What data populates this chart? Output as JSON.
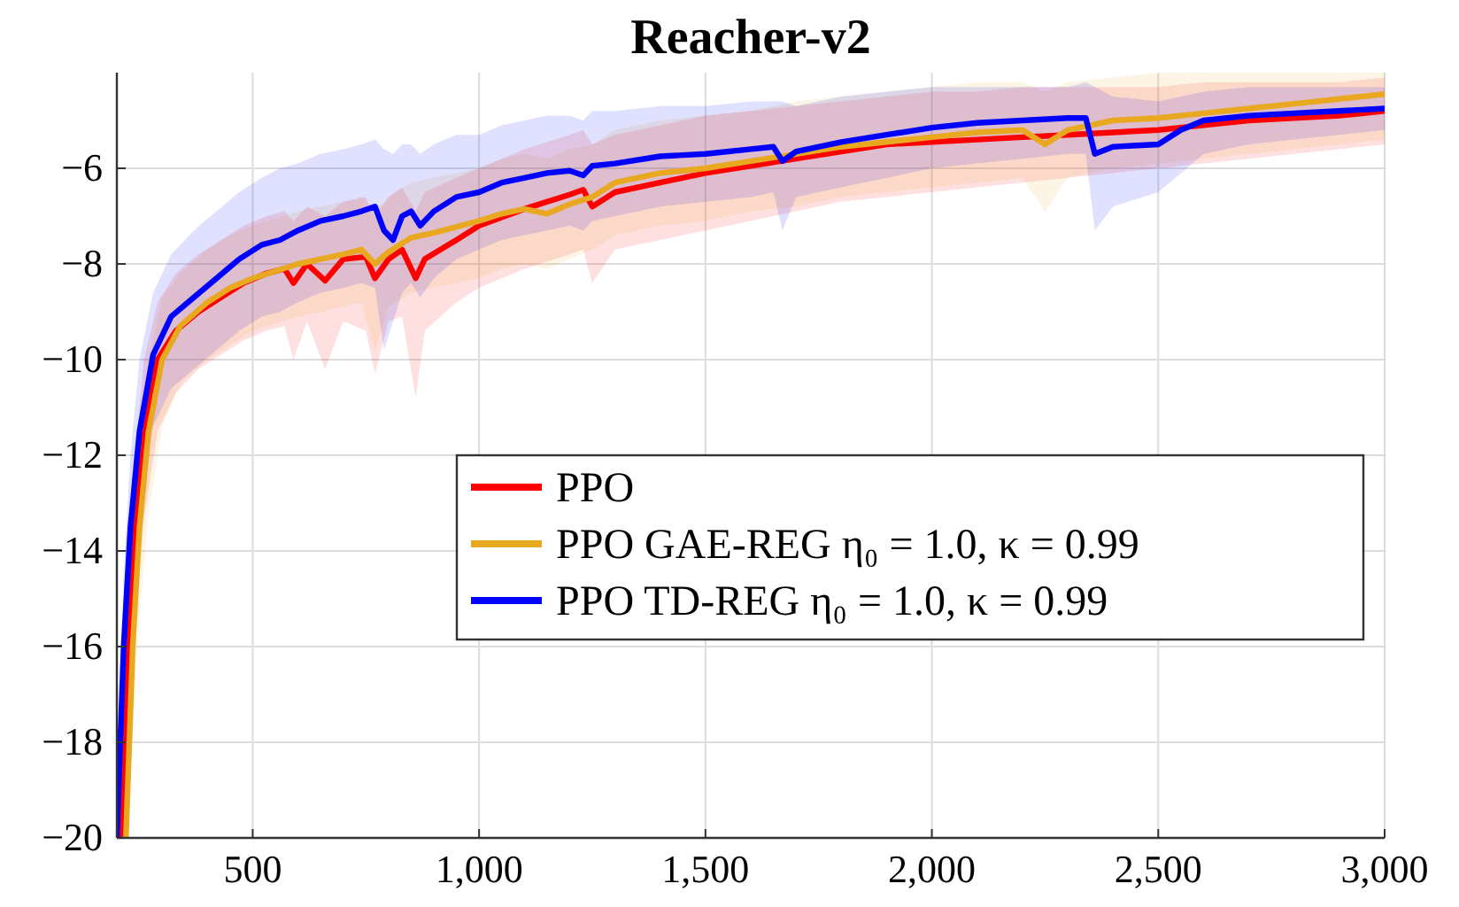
{
  "chart_data": {
    "type": "line",
    "title": "Reacher-v2",
    "xlim": [
      200,
      3000
    ],
    "ylim": [
      -20,
      -4
    ],
    "xticks": [
      500,
      {
        "value": 1000,
        "label": "1,000"
      },
      {
        "value": 1500,
        "label": "1,500"
      },
      {
        "value": 2000,
        "label": "2,000"
      },
      {
        "value": 2500,
        "label": "2,500"
      },
      {
        "value": 3000,
        "label": "3,000"
      }
    ],
    "yticks": [
      {
        "value": -20,
        "label": "−20"
      },
      {
        "value": -18,
        "label": "−18"
      },
      {
        "value": -16,
        "label": "−16"
      },
      {
        "value": -14,
        "label": "−14"
      },
      {
        "value": -12,
        "label": "−12"
      },
      {
        "value": -10,
        "label": "−10"
      },
      {
        "value": -8,
        "label": "−8"
      },
      {
        "value": -6,
        "label": "−6"
      }
    ],
    "grid": true,
    "legend": "right",
    "marker": "none",
    "line_style": "solid",
    "series": [
      {
        "name": "PPO",
        "color": "#ff0000",
        "x": [
          210,
          225,
          240,
          260,
          290,
          330,
          380,
          430,
          480,
          530,
          570,
          590,
          620,
          660,
          700,
          750,
          770,
          800,
          830,
          860,
          880,
          950,
          1000,
          1100,
          1200,
          1230,
          1250,
          1300,
          1400,
          1500,
          1600,
          1700,
          1800,
          1900,
          2000,
          2100,
          2200,
          2300,
          2400,
          2500,
          2600,
          2700,
          2800,
          2900,
          3000
        ],
        "values": [
          -20,
          -16,
          -13.5,
          -11.5,
          -10,
          -9.4,
          -9,
          -8.7,
          -8.4,
          -8.2,
          -8.1,
          -8.4,
          -8,
          -8.35,
          -7.9,
          -7.85,
          -8.3,
          -7.9,
          -7.7,
          -8.3,
          -7.9,
          -7.5,
          -7.2,
          -6.85,
          -6.55,
          -6.45,
          -6.8,
          -6.5,
          -6.3,
          -6.1,
          -5.95,
          -5.8,
          -5.65,
          -5.5,
          -5.45,
          -5.4,
          -5.35,
          -5.3,
          -5.25,
          -5.2,
          -5.1,
          -5,
          -4.95,
          -4.9,
          -4.8
        ],
        "lower": [
          -20,
          -18,
          -15.5,
          -13.3,
          -11.5,
          -10.7,
          -10.2,
          -9.9,
          -9.6,
          -9.4,
          -9.3,
          -10,
          -9.2,
          -10.2,
          -9.2,
          -9.4,
          -10.3,
          -9.2,
          -9.1,
          -10.8,
          -9.4,
          -8.8,
          -8.5,
          -8.1,
          -7.8,
          -7.7,
          -8.4,
          -7.7,
          -7.5,
          -7.3,
          -7.1,
          -6.9,
          -6.7,
          -6.6,
          -6.5,
          -6.4,
          -6.3,
          -6.2,
          -6.1,
          -6,
          -5.9,
          -5.8,
          -5.7,
          -5.6,
          -5.5
        ],
        "upper": [
          -19,
          -14.5,
          -12,
          -10,
          -8.8,
          -8.2,
          -7.8,
          -7.5,
          -7.2,
          -7,
          -6.9,
          -7.1,
          -6.8,
          -7,
          -6.7,
          -6.6,
          -7,
          -6.6,
          -6.4,
          -6.9,
          -6.5,
          -6.2,
          -6,
          -5.6,
          -5.3,
          -5.2,
          -5.5,
          -5.3,
          -5.1,
          -4.9,
          -4.8,
          -4.7,
          -4.6,
          -4.5,
          -4.4,
          -4.4,
          -4.3,
          -4.3,
          -4.3,
          -4.3,
          -4.2,
          -4.2,
          -4.2,
          -4.2,
          -4.1
        ]
      },
      {
        "name": "PPO GAE-REG η₀ = 1.0, κ = 0.99",
        "color": "#e8a820",
        "x": [
          220,
          235,
          250,
          270,
          300,
          340,
          400,
          450,
          500,
          600,
          700,
          740,
          770,
          800,
          850,
          900,
          1000,
          1050,
          1100,
          1150,
          1200,
          1250,
          1300,
          1400,
          1500,
          1600,
          1700,
          1800,
          1900,
          2000,
          2100,
          2200,
          2250,
          2300,
          2400,
          2500,
          2600,
          2700,
          2800,
          2900,
          3000
        ],
        "values": [
          -20,
          -16,
          -13.5,
          -11.5,
          -10,
          -9.3,
          -8.8,
          -8.5,
          -8.3,
          -8,
          -7.8,
          -7.7,
          -8,
          -7.75,
          -7.45,
          -7.35,
          -7.1,
          -6.95,
          -6.85,
          -6.95,
          -6.75,
          -6.6,
          -6.3,
          -6.1,
          -6,
          -5.85,
          -5.7,
          -5.55,
          -5.45,
          -5.35,
          -5.25,
          -5.2,
          -5.5,
          -5.2,
          -5,
          -4.95,
          -4.85,
          -4.75,
          -4.65,
          -4.55,
          -4.45
        ],
        "lower": [
          -20,
          -17.8,
          -15.3,
          -13.2,
          -11.4,
          -10.5,
          -10,
          -9.7,
          -9.4,
          -9.1,
          -8.9,
          -8.8,
          -9.8,
          -8.9,
          -8.6,
          -8.5,
          -8.3,
          -8.1,
          -8,
          -8.1,
          -7.9,
          -7.7,
          -7.4,
          -7.2,
          -7.1,
          -6.9,
          -6.8,
          -6.6,
          -6.5,
          -6.4,
          -6.3,
          -6.2,
          -6.9,
          -6.2,
          -6,
          -5.9,
          -5.8,
          -5.7,
          -5.6,
          -5.5,
          -5.4
        ],
        "upper": [
          -19,
          -14.5,
          -12,
          -10,
          -8.7,
          -8.2,
          -7.7,
          -7.4,
          -7.2,
          -6.9,
          -6.7,
          -6.6,
          -6.9,
          -6.6,
          -6.3,
          -6.2,
          -6,
          -5.8,
          -5.7,
          -5.8,
          -5.6,
          -5.5,
          -5.2,
          -5,
          -4.9,
          -4.8,
          -4.6,
          -4.5,
          -4.4,
          -4.3,
          -4.2,
          -4.2,
          -4.4,
          -4.2,
          -4.1,
          -4,
          -4,
          -4,
          -4,
          -4,
          -4
        ]
      },
      {
        "name": "PPO TD-REG η₀ = 1.0, κ = 0.99",
        "color": "#0000ff",
        "x": [
          200,
          215,
          230,
          250,
          280,
          320,
          370,
          420,
          470,
          520,
          560,
          600,
          650,
          700,
          740,
          770,
          790,
          810,
          830,
          850,
          870,
          900,
          950,
          1000,
          1050,
          1100,
          1150,
          1200,
          1230,
          1250,
          1300,
          1400,
          1500,
          1600,
          1650,
          1670,
          1700,
          1800,
          1900,
          2000,
          2100,
          2200,
          2300,
          2340,
          2360,
          2400,
          2500,
          2550,
          2600,
          2700,
          2800,
          2900,
          3000
        ],
        "values": [
          -20,
          -16,
          -13.5,
          -11.5,
          -9.9,
          -9.1,
          -8.7,
          -8.3,
          -7.9,
          -7.6,
          -7.5,
          -7.3,
          -7.1,
          -7,
          -6.9,
          -6.8,
          -7.3,
          -7.5,
          -7,
          -6.9,
          -7.2,
          -6.9,
          -6.6,
          -6.5,
          -6.3,
          -6.2,
          -6.1,
          -6.05,
          -6.15,
          -5.95,
          -5.9,
          -5.75,
          -5.7,
          -5.6,
          -5.55,
          -5.85,
          -5.65,
          -5.45,
          -5.3,
          -5.15,
          -5.05,
          -5,
          -4.95,
          -4.95,
          -5.7,
          -5.55,
          -5.5,
          -5.2,
          -5,
          -4.9,
          -4.85,
          -4.8,
          -4.75
        ],
        "lower": [
          -20,
          -17.5,
          -15,
          -13,
          -11.4,
          -10.6,
          -10.2,
          -9.8,
          -9.4,
          -9.1,
          -9,
          -8.8,
          -8.6,
          -8.5,
          -8.4,
          -8.5,
          -9.8,
          -9.2,
          -8.6,
          -8.4,
          -8.7,
          -8.3,
          -7.9,
          -7.7,
          -7.5,
          -7.4,
          -7.3,
          -7.2,
          -7.3,
          -7.1,
          -7,
          -6.8,
          -6.7,
          -6.6,
          -6.5,
          -7.3,
          -6.6,
          -6.4,
          -6.2,
          -6,
          -5.9,
          -5.8,
          -5.7,
          -5.7,
          -7.3,
          -6.8,
          -6.5,
          -6.1,
          -5.7,
          -5.5,
          -5.4,
          -5.3,
          -5.2
        ],
        "upper": [
          -19,
          -14.5,
          -12,
          -10,
          -8.6,
          -7.8,
          -7.3,
          -6.9,
          -6.5,
          -6.2,
          -6,
          -5.9,
          -5.7,
          -5.6,
          -5.5,
          -5.4,
          -5.6,
          -5.7,
          -5.5,
          -5.5,
          -5.7,
          -5.5,
          -5.3,
          -5.3,
          -5.1,
          -5,
          -4.9,
          -4.9,
          -5,
          -4.8,
          -4.8,
          -4.7,
          -4.7,
          -4.6,
          -4.6,
          -4.6,
          -4.7,
          -4.5,
          -4.4,
          -4.3,
          -4.3,
          -4.3,
          -4.3,
          -4.2,
          -4.3,
          -4.5,
          -4.6,
          -4.5,
          -4.4,
          -4.3,
          -4.3,
          -4.3,
          -4.3
        ]
      }
    ]
  }
}
